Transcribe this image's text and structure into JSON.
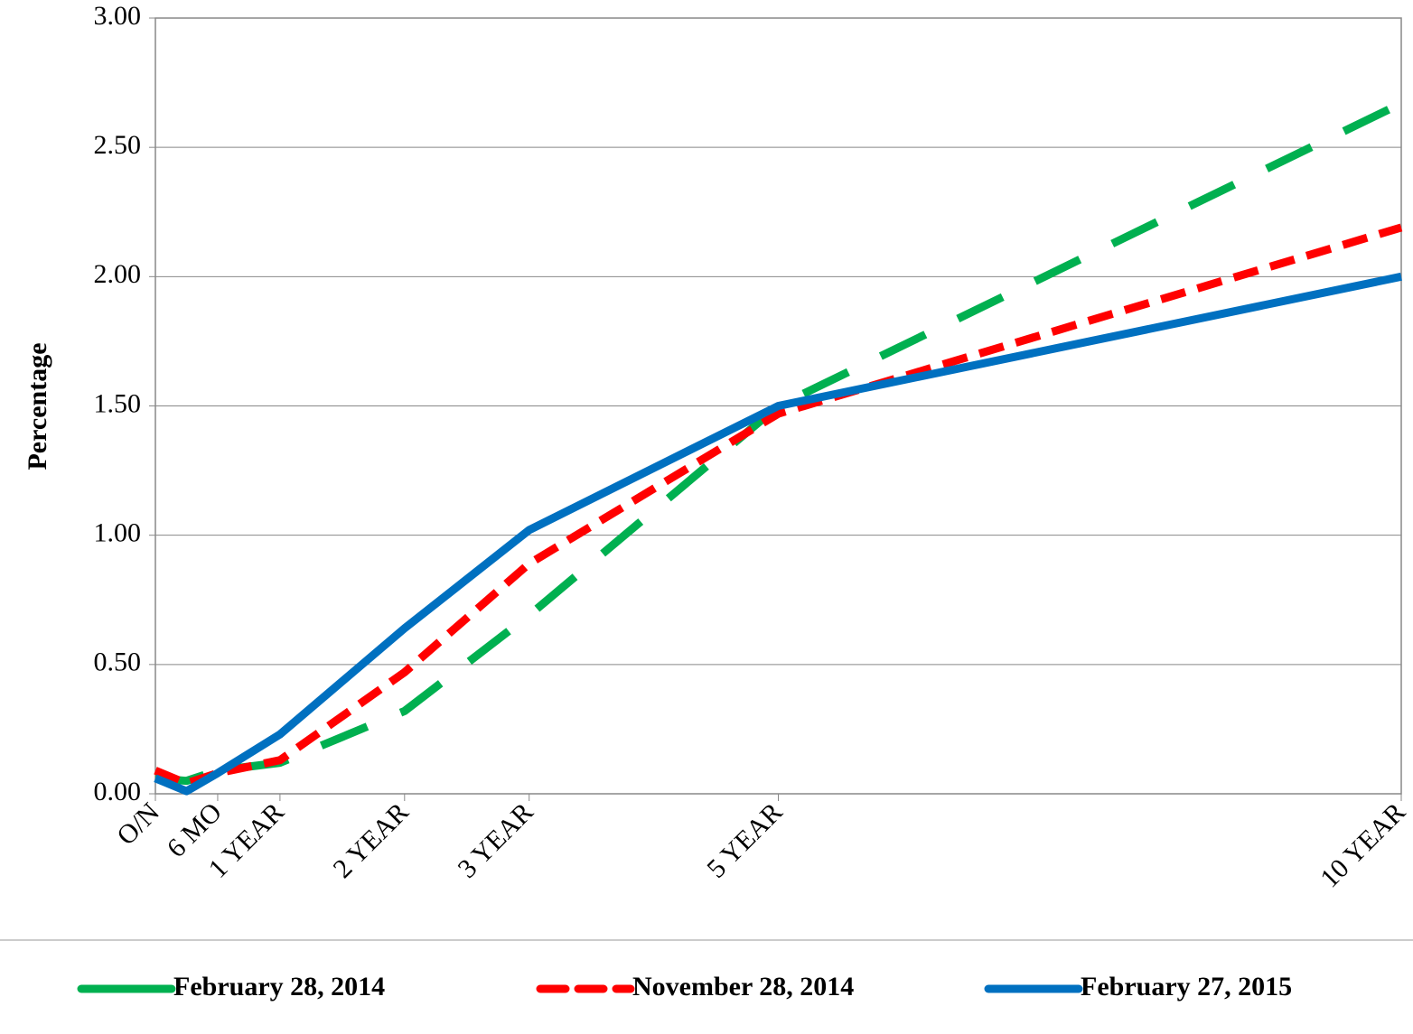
{
  "chart_data": {
    "type": "line",
    "y_label": "Percentage",
    "x": [
      0,
      0.25,
      0.5,
      1,
      2,
      3,
      5,
      10
    ],
    "xlim": [
      0,
      10
    ],
    "xticks": [
      {
        "value": 0,
        "label": "O/N"
      },
      {
        "value": 0.5,
        "label": "6 MO"
      },
      {
        "value": 1,
        "label": "1 YEAR"
      },
      {
        "value": 2,
        "label": "2 YEAR"
      },
      {
        "value": 3,
        "label": "3 YEAR"
      },
      {
        "value": 5,
        "label": "5 YEAR"
      },
      {
        "value": 10,
        "label": "10 YEAR"
      }
    ],
    "ylim": [
      0,
      3
    ],
    "yticks": [
      {
        "value": 0,
        "label": "0.00"
      },
      {
        "value": 0.5,
        "label": "0.50"
      },
      {
        "value": 1,
        "label": "1.00"
      },
      {
        "value": 1.5,
        "label": "1.50"
      },
      {
        "value": 2,
        "label": "2.00"
      },
      {
        "value": 2.5,
        "label": "2.50"
      },
      {
        "value": 3,
        "label": "3.00"
      }
    ],
    "grid": true,
    "legend": "bottom",
    "series": [
      {
        "name": "February 28, 2014",
        "color": "#00b050",
        "style": "long-dash",
        "values": [
          0.06,
          0.05,
          0.09,
          0.12,
          0.32,
          0.69,
          1.5,
          2.67
        ]
      },
      {
        "name": "November 28, 2014",
        "color": "#ff0000",
        "style": "dash",
        "values": [
          0.09,
          0.04,
          0.08,
          0.13,
          0.47,
          0.89,
          1.47,
          2.19
        ]
      },
      {
        "name": "February 27, 2015",
        "color": "#0070c0",
        "style": "solid",
        "values": [
          0.06,
          0.01,
          0.08,
          0.23,
          0.64,
          1.02,
          1.5,
          2.0
        ]
      }
    ]
  }
}
